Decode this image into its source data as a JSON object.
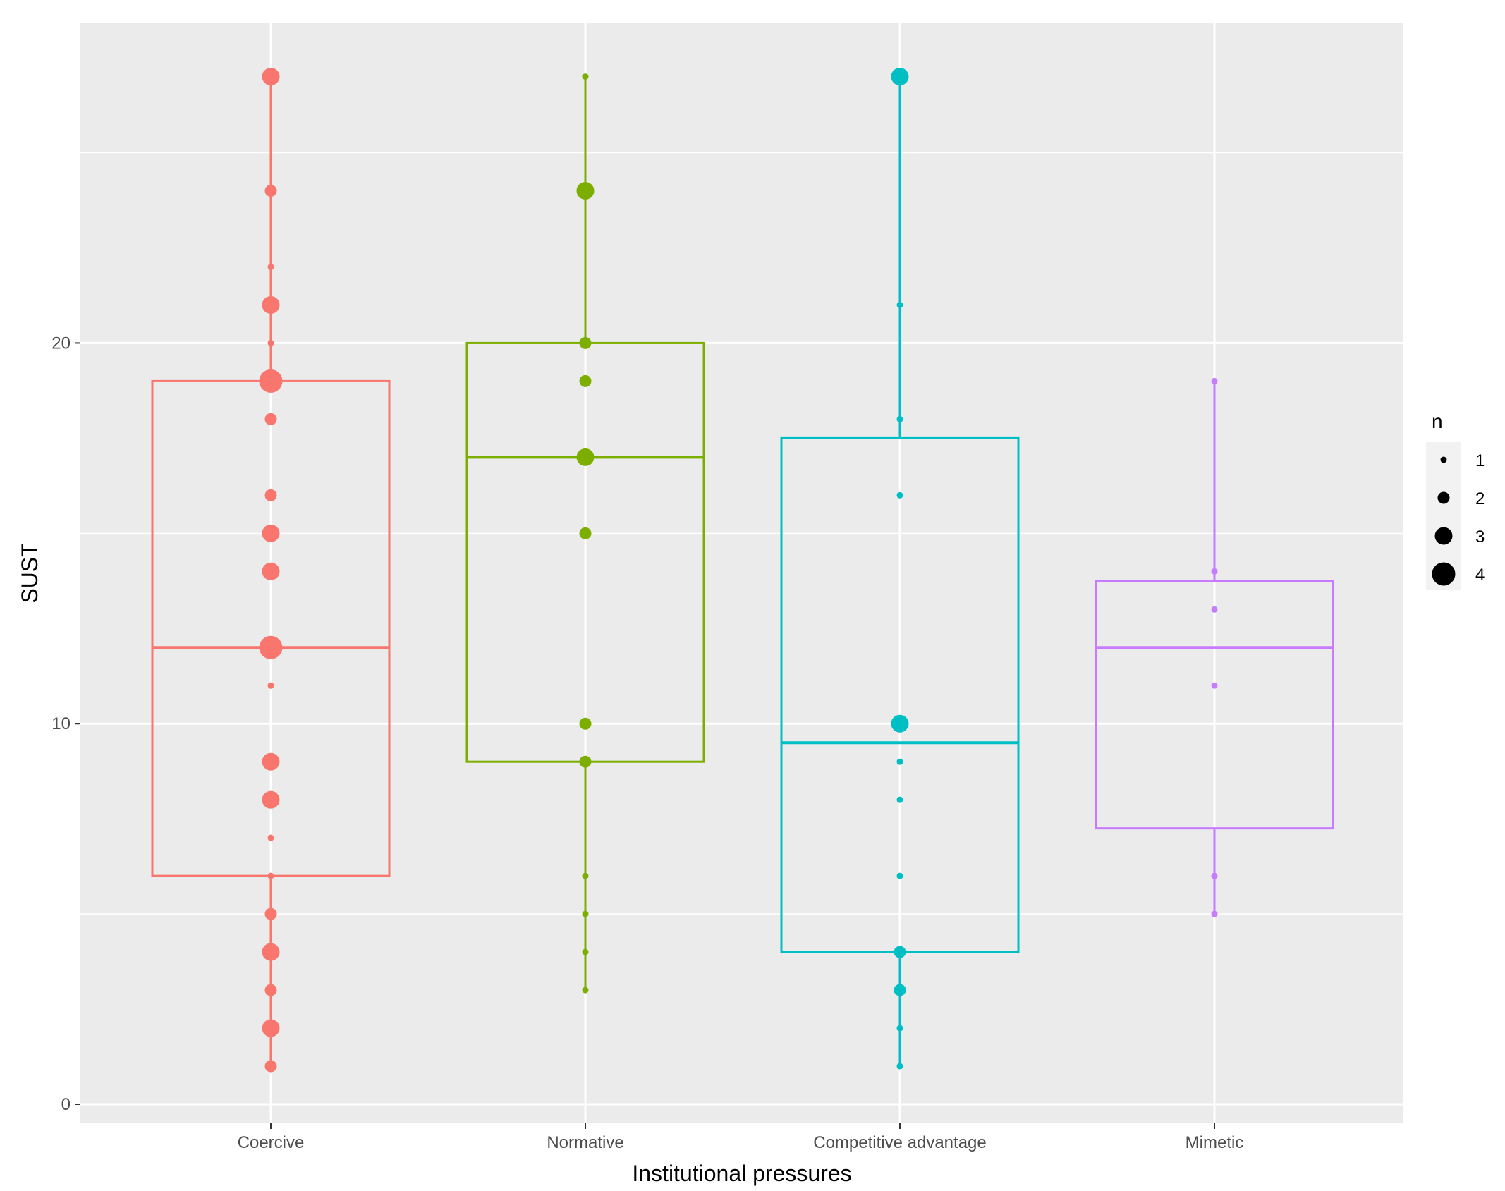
{
  "chart_data": {
    "type": "boxplot",
    "title": "",
    "xlabel": "Institutional pressures",
    "ylabel": "SUST",
    "ylim": [
      -0.5,
      28.4
    ],
    "yticks": [
      0,
      10,
      20
    ],
    "ytick_labels": [
      "0",
      "10",
      "20"
    ],
    "grid": true,
    "categories": [
      "Coercive",
      "Normative",
      "Competitive advantage",
      "Mimetic"
    ],
    "colors": [
      "#F8766D",
      "#7CAE00",
      "#00BFC4",
      "#C77CFF"
    ],
    "boxes": [
      {
        "name": "Coercive",
        "q1": 6,
        "median": 12,
        "q3": 19,
        "whisker_low": 1,
        "whisker_high": 27
      },
      {
        "name": "Normative",
        "q1": 9,
        "median": 17,
        "q3": 20,
        "whisker_low": 3,
        "whisker_high": 27
      },
      {
        "name": "Competitive advantage",
        "q1": 4,
        "median": 9.5,
        "q3": 17.5,
        "whisker_low": 1,
        "whisker_high": 27
      },
      {
        "name": "Mimetic",
        "q1": 7.25,
        "median": 12,
        "q3": 13.75,
        "whisker_low": 5,
        "whisker_high": 19
      }
    ],
    "points": [
      {
        "group": "Coercive",
        "y": 27,
        "n": 3
      },
      {
        "group": "Coercive",
        "y": 24,
        "n": 2
      },
      {
        "group": "Coercive",
        "y": 22,
        "n": 1
      },
      {
        "group": "Coercive",
        "y": 21,
        "n": 3
      },
      {
        "group": "Coercive",
        "y": 20,
        "n": 1
      },
      {
        "group": "Coercive",
        "y": 19,
        "n": 4
      },
      {
        "group": "Coercive",
        "y": 18,
        "n": 2
      },
      {
        "group": "Coercive",
        "y": 16,
        "n": 2
      },
      {
        "group": "Coercive",
        "y": 15,
        "n": 3
      },
      {
        "group": "Coercive",
        "y": 14,
        "n": 3
      },
      {
        "group": "Coercive",
        "y": 12,
        "n": 4
      },
      {
        "group": "Coercive",
        "y": 11,
        "n": 1
      },
      {
        "group": "Coercive",
        "y": 9,
        "n": 3
      },
      {
        "group": "Coercive",
        "y": 8,
        "n": 3
      },
      {
        "group": "Coercive",
        "y": 7,
        "n": 1
      },
      {
        "group": "Coercive",
        "y": 6,
        "n": 1
      },
      {
        "group": "Coercive",
        "y": 5,
        "n": 2
      },
      {
        "group": "Coercive",
        "y": 4,
        "n": 3
      },
      {
        "group": "Coercive",
        "y": 3,
        "n": 2
      },
      {
        "group": "Coercive",
        "y": 2,
        "n": 3
      },
      {
        "group": "Coercive",
        "y": 1,
        "n": 2
      },
      {
        "group": "Normative",
        "y": 27,
        "n": 1
      },
      {
        "group": "Normative",
        "y": 24,
        "n": 3
      },
      {
        "group": "Normative",
        "y": 20,
        "n": 2
      },
      {
        "group": "Normative",
        "y": 19,
        "n": 2
      },
      {
        "group": "Normative",
        "y": 17,
        "n": 3
      },
      {
        "group": "Normative",
        "y": 15,
        "n": 2
      },
      {
        "group": "Normative",
        "y": 10,
        "n": 2
      },
      {
        "group": "Normative",
        "y": 9,
        "n": 2
      },
      {
        "group": "Normative",
        "y": 6,
        "n": 1
      },
      {
        "group": "Normative",
        "y": 5,
        "n": 1
      },
      {
        "group": "Normative",
        "y": 4,
        "n": 1
      },
      {
        "group": "Normative",
        "y": 3,
        "n": 1
      },
      {
        "group": "Competitive advantage",
        "y": 27,
        "n": 3
      },
      {
        "group": "Competitive advantage",
        "y": 21,
        "n": 1
      },
      {
        "group": "Competitive advantage",
        "y": 18,
        "n": 1
      },
      {
        "group": "Competitive advantage",
        "y": 16,
        "n": 1
      },
      {
        "group": "Competitive advantage",
        "y": 10,
        "n": 3
      },
      {
        "group": "Competitive advantage",
        "y": 9,
        "n": 1
      },
      {
        "group": "Competitive advantage",
        "y": 8,
        "n": 1
      },
      {
        "group": "Competitive advantage",
        "y": 6,
        "n": 1
      },
      {
        "group": "Competitive advantage",
        "y": 4,
        "n": 2
      },
      {
        "group": "Competitive advantage",
        "y": 3,
        "n": 2
      },
      {
        "group": "Competitive advantage",
        "y": 2,
        "n": 1
      },
      {
        "group": "Competitive advantage",
        "y": 1,
        "n": 1
      },
      {
        "group": "Mimetic",
        "y": 19,
        "n": 1
      },
      {
        "group": "Mimetic",
        "y": 14,
        "n": 1
      },
      {
        "group": "Mimetic",
        "y": 13,
        "n": 1
      },
      {
        "group": "Mimetic",
        "y": 11,
        "n": 1
      },
      {
        "group": "Mimetic",
        "y": 6,
        "n": 1
      },
      {
        "group": "Mimetic",
        "y": 5,
        "n": 1
      }
    ],
    "legend": {
      "title": "n",
      "position": "right",
      "entries": [
        {
          "label": "1",
          "n": 1
        },
        {
          "label": "2",
          "n": 2
        },
        {
          "label": "3",
          "n": 3
        },
        {
          "label": "4",
          "n": 4
        }
      ]
    }
  }
}
